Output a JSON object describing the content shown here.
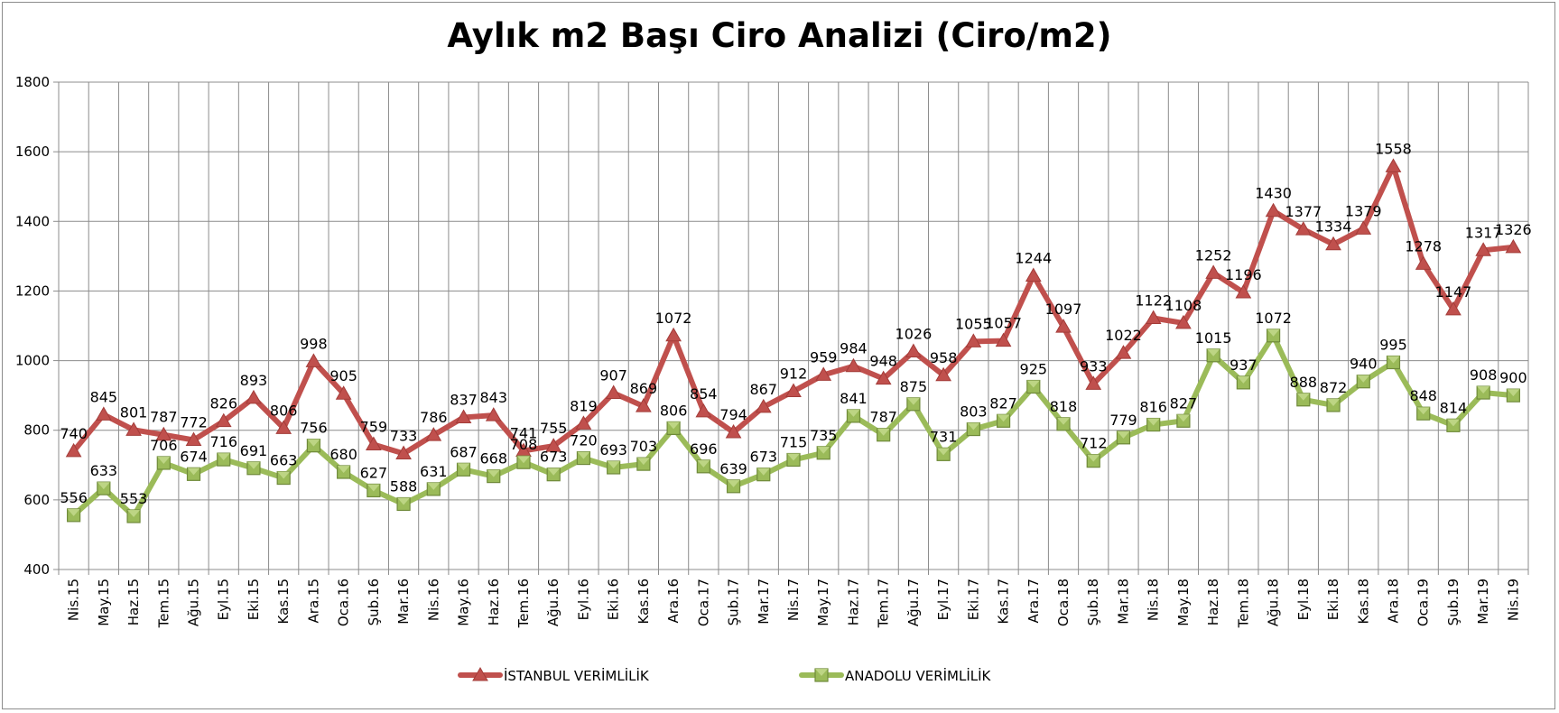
{
  "chart_data": {
    "type": "line",
    "title": "Aylık m2 Başı Ciro Analizi (Ciro/m2)",
    "xlabel": "",
    "ylabel": "",
    "ylim": [
      400,
      1800
    ],
    "yticks": [
      400,
      600,
      800,
      1000,
      1200,
      1400,
      1600,
      1800
    ],
    "grid": true,
    "legend": "bottom",
    "categories": [
      "Nis.15",
      "May.15",
      "Haz.15",
      "Tem.15",
      "Ağu.15",
      "Eyl.15",
      "Eki.15",
      "Kas.15",
      "Ara.15",
      "Oca.16",
      "Şub.16",
      "Mar.16",
      "Nis.16",
      "May.16",
      "Haz.16",
      "Tem.16",
      "Ağu.16",
      "Eyl.16",
      "Eki.16",
      "Kas.16",
      "Ara.16",
      "Oca.17",
      "Şub.17",
      "Mar.17",
      "Nis.17",
      "May.17",
      "Haz.17",
      "Tem.17",
      "Ağu.17",
      "Eyl.17",
      "Eki.17",
      "Kas.17",
      "Ara.17",
      "Oca.18",
      "Şub.18",
      "Mar.18",
      "Nis.18",
      "May.18",
      "Haz.18",
      "Tem.18",
      "Ağu.18",
      "Eyl.18",
      "Eki.18",
      "Kas.18",
      "Ara.18",
      "Oca.19",
      "Şub.19",
      "Mar.19",
      "Nis.19"
    ],
    "series": [
      {
        "name": "İSTANBUL VERİMLİLİK",
        "color": "#c0504d",
        "marker": "triangle",
        "values": [
          740,
          845,
          801,
          787,
          772,
          826,
          893,
          806,
          998,
          905,
          759,
          733,
          786,
          837,
          843,
          741,
          755,
          819,
          907,
          869,
          1072,
          854,
          794,
          867,
          912,
          959,
          984,
          948,
          1026,
          958,
          1055,
          1057,
          1244,
          1097,
          933,
          1022,
          1122,
          1108,
          1252,
          1196,
          1430,
          1377,
          1334,
          1379,
          1558,
          1278,
          1147,
          1317,
          1326
        ]
      },
      {
        "name": "ANADOLU VERİMLİLİK",
        "color": "#9bbb59",
        "marker": "square",
        "values": [
          556,
          633,
          553,
          706,
          674,
          716,
          691,
          663,
          756,
          680,
          627,
          588,
          631,
          687,
          668,
          708,
          673,
          720,
          693,
          703,
          806,
          696,
          639,
          673,
          715,
          735,
          841,
          787,
          875,
          731,
          803,
          827,
          925,
          818,
          712,
          779,
          816,
          827,
          1015,
          937,
          1072,
          888,
          872,
          940,
          995,
          848,
          814,
          908,
          900
        ]
      }
    ]
  }
}
